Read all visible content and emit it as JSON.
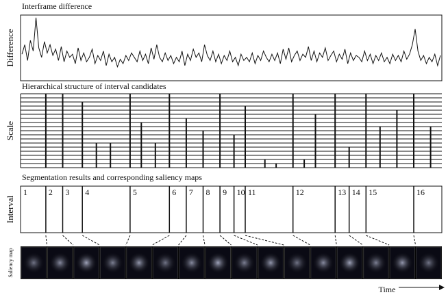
{
  "headings": {
    "difference": "Interframe difference",
    "hierarchy": "Hierarchical structure of interval candidates",
    "segmentation": "Segmentation results and corresponding saliency maps"
  },
  "axis_labels": {
    "difference": "Difference",
    "scale": "Scale",
    "interval": "Interval",
    "saliency": "Saliency map",
    "time": "Time"
  },
  "signal": {
    "values": [
      40,
      55,
      30,
      62,
      45,
      98,
      50,
      35,
      60,
      42,
      55,
      38,
      48,
      30,
      52,
      28,
      45,
      35,
      40,
      25,
      50,
      30,
      42,
      28,
      35,
      48,
      25,
      38,
      30,
      45,
      22,
      40,
      28,
      35,
      20,
      32,
      25,
      38,
      30,
      42,
      35,
      28,
      45,
      30,
      40,
      25,
      50,
      32,
      55,
      35,
      28,
      42,
      30,
      38,
      25,
      35,
      28,
      45,
      22,
      40,
      30,
      48,
      35,
      42,
      28,
      55,
      38,
      30,
      45,
      28,
      40,
      25,
      38,
      30,
      45,
      28,
      35,
      22,
      40,
      30,
      35,
      28,
      42,
      25,
      38,
      30,
      45,
      35,
      28,
      40,
      30,
      42,
      25,
      48,
      32,
      50,
      28,
      38,
      45,
      30,
      40,
      35,
      52,
      30,
      45,
      28,
      42,
      35,
      50,
      30,
      38,
      45,
      28,
      40,
      32,
      48,
      25,
      42,
      30,
      38,
      35,
      28,
      45,
      30,
      40,
      25,
      38,
      30,
      42,
      28,
      35,
      25,
      40,
      30,
      38,
      28,
      45,
      32,
      40,
      55,
      80,
      45,
      30,
      38,
      25,
      35,
      28,
      40,
      22,
      38
    ]
  },
  "hierarchy": {
    "num_levels": 18,
    "candidates": [
      {
        "frame": 9,
        "level": 18
      },
      {
        "frame": 15,
        "level": 18
      },
      {
        "frame": 22,
        "level": 16
      },
      {
        "frame": 27,
        "level": 6
      },
      {
        "frame": 32,
        "level": 6
      },
      {
        "frame": 39,
        "level": 18
      },
      {
        "frame": 43,
        "level": 11
      },
      {
        "frame": 48,
        "level": 6
      },
      {
        "frame": 53,
        "level": 18
      },
      {
        "frame": 59,
        "level": 12
      },
      {
        "frame": 65,
        "level": 9
      },
      {
        "frame": 71,
        "level": 18
      },
      {
        "frame": 76,
        "level": 8
      },
      {
        "frame": 80,
        "level": 15
      },
      {
        "frame": 87,
        "level": 2
      },
      {
        "frame": 91,
        "level": 1
      },
      {
        "frame": 97,
        "level": 18
      },
      {
        "frame": 101,
        "level": 2
      },
      {
        "frame": 105,
        "level": 13
      },
      {
        "frame": 112,
        "level": 18
      },
      {
        "frame": 117,
        "level": 5
      },
      {
        "frame": 123,
        "level": 18
      },
      {
        "frame": 128,
        "level": 10
      },
      {
        "frame": 134,
        "level": 14
      },
      {
        "frame": 140,
        "level": 18
      },
      {
        "frame": 146,
        "level": 10
      }
    ]
  },
  "segments": {
    "labels": [
      "1",
      "2",
      "3",
      "4",
      "5",
      "6",
      "7",
      "8",
      "9",
      "10",
      "11",
      "12",
      "13",
      "14",
      "15",
      "16"
    ],
    "starts": [
      0,
      9,
      15,
      22,
      39,
      53,
      59,
      65,
      71,
      76,
      80,
      97,
      112,
      117,
      123,
      140
    ]
  }
}
